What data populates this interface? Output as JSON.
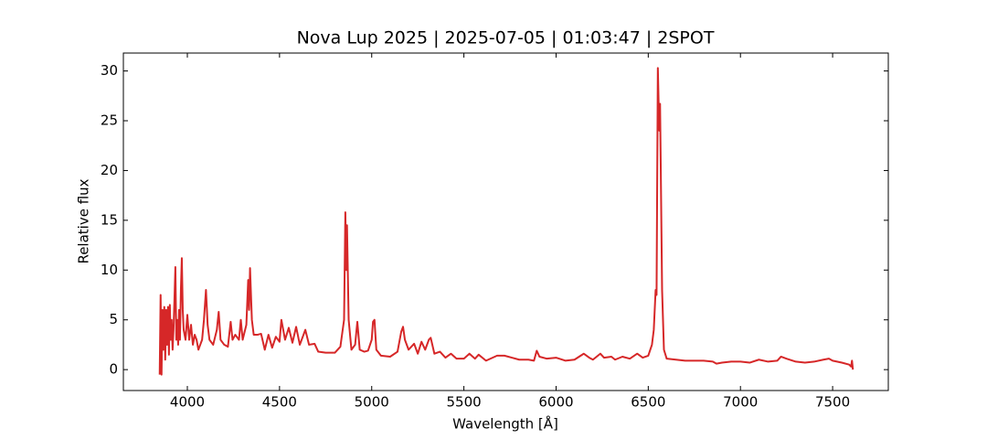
{
  "chart_data": {
    "type": "line",
    "title": "Nova Lup 2025 | 2025-07-05 | 01:03:47 | 2SPOT",
    "xlabel": "Wavelength [Å]",
    "ylabel": "Relative flux",
    "xlim": [
      3653,
      7802
    ],
    "ylim": [
      -2.1,
      31.8
    ],
    "xticks": [
      4000,
      4500,
      5000,
      5500,
      6000,
      6500,
      7000,
      7500
    ],
    "yticks": [
      0,
      5,
      10,
      15,
      20,
      25,
      30
    ],
    "grid": false,
    "series": [
      {
        "color": "#d62728",
        "x": [
          3850,
          3855,
          3860,
          3865,
          3870,
          3875,
          3880,
          3885,
          3890,
          3895,
          3900,
          3905,
          3910,
          3915,
          3920,
          3925,
          3930,
          3935,
          3940,
          3945,
          3950,
          3955,
          3960,
          3965,
          3970,
          3975,
          3980,
          3990,
          4000,
          4010,
          4020,
          4030,
          4040,
          4050,
          4060,
          4070,
          4080,
          4090,
          4101,
          4110,
          4120,
          4140,
          4160,
          4170,
          4180,
          4200,
          4220,
          4235,
          4245,
          4260,
          4280,
          4290,
          4300,
          4320,
          4330,
          4335,
          4340,
          4350,
          4360,
          4380,
          4400,
          4420,
          4440,
          4460,
          4480,
          4500,
          4510,
          4530,
          4550,
          4570,
          4590,
          4610,
          4640,
          4660,
          4690,
          4710,
          4750,
          4800,
          4830,
          4850,
          4857,
          4862,
          4866,
          4875,
          4890,
          4910,
          4922,
          4935,
          4960,
          4980,
          5000,
          5007,
          5015,
          5025,
          5050,
          5100,
          5140,
          5160,
          5170,
          5180,
          5200,
          5230,
          5250,
          5270,
          5290,
          5310,
          5320,
          5340,
          5370,
          5400,
          5430,
          5460,
          5500,
          5530,
          5560,
          5580,
          5620,
          5680,
          5720,
          5760,
          5800,
          5850,
          5880,
          5895,
          5910,
          5950,
          6000,
          6050,
          6100,
          6150,
          6180,
          6200,
          6240,
          6260,
          6300,
          6320,
          6360,
          6400,
          6440,
          6470,
          6500,
          6520,
          6530,
          6540,
          6545,
          6552,
          6556,
          6560,
          6564,
          6568,
          6575,
          6585,
          6600,
          6650,
          6700,
          6750,
          6800,
          6850,
          6870,
          6900,
          6950,
          7000,
          7050,
          7100,
          7150,
          7200,
          7220,
          7250,
          7300,
          7350,
          7400,
          7450,
          7480,
          7500,
          7550,
          7590,
          7600,
          7605,
          7610
        ],
        "values": [
          -0.5,
          7.5,
          -0.5,
          6,
          2,
          6.3,
          1,
          6,
          2.5,
          6.3,
          1.5,
          6.5,
          3,
          5,
          2,
          4,
          7,
          10.3,
          3,
          5,
          2.5,
          6,
          3,
          8,
          11.2,
          6,
          4,
          3,
          5.5,
          3,
          4.5,
          2.5,
          3.5,
          3,
          2,
          2.5,
          3,
          5,
          8,
          4.5,
          3,
          2.5,
          4,
          5.8,
          3,
          2.5,
          2.3,
          4.8,
          3,
          3.5,
          3,
          5,
          3,
          4.5,
          9,
          6,
          10.2,
          5,
          3.5,
          3.5,
          3.6,
          2,
          3.5,
          2.2,
          3.3,
          2.8,
          5,
          3,
          4.2,
          2.7,
          4.3,
          2.5,
          4,
          2.5,
          2.6,
          1.8,
          1.7,
          1.7,
          2.3,
          5,
          15.8,
          10,
          14.5,
          5,
          2,
          2.5,
          4.8,
          2,
          1.8,
          1.9,
          3,
          4.8,
          5,
          2,
          1.4,
          1.3,
          1.8,
          3.8,
          4.3,
          3,
          2,
          2.6,
          1.6,
          2.8,
          2,
          3,
          3.2,
          1.6,
          1.8,
          1.2,
          1.6,
          1.1,
          1.1,
          1.6,
          1.1,
          1.5,
          0.9,
          1.4,
          1.4,
          1.2,
          1,
          1,
          0.9,
          1.9,
          1.3,
          1.1,
          1.2,
          0.9,
          1,
          1.6,
          1.2,
          1,
          1.6,
          1.2,
          1.3,
          1,
          1.3,
          1.1,
          1.6,
          1.2,
          1.4,
          2.5,
          4,
          8,
          7.5,
          30.3,
          27,
          24,
          26.7,
          20,
          8,
          2,
          1.1,
          1,
          0.9,
          0.9,
          0.9,
          0.8,
          0.6,
          0.7,
          0.8,
          0.8,
          0.7,
          1,
          0.8,
          0.9,
          1.3,
          1.1,
          0.8,
          0.7,
          0.8,
          1,
          1.1,
          0.9,
          0.7,
          0.5,
          0.3,
          0.9,
          0
        ]
      }
    ]
  }
}
